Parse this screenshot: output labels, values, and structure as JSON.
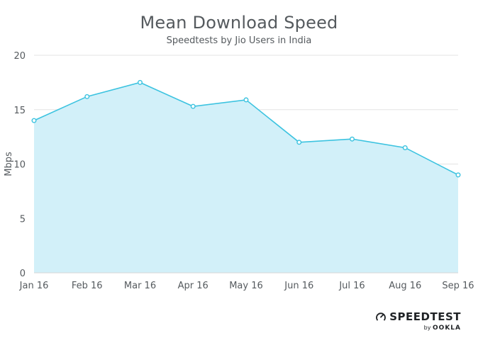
{
  "chart_data": {
    "type": "area",
    "title": "Mean Download Speed",
    "subtitle": "Speedtests by Jio Users in India",
    "xlabel": "",
    "ylabel": "Mbps",
    "categories": [
      "Jan 16",
      "Feb 16",
      "Mar 16",
      "Apr 16",
      "May 16",
      "Jun 16",
      "Jul 16",
      "Aug 16",
      "Sep 16"
    ],
    "series": [
      {
        "values": [
          14.0,
          16.2,
          17.5,
          15.3,
          15.9,
          12.0,
          12.3,
          11.5,
          9.0
        ]
      }
    ],
    "ylim": [
      0,
      20
    ],
    "yticks": [
      0,
      5,
      10,
      15,
      20
    ],
    "grid": true,
    "legend": "none",
    "colors": {
      "line": "#3cc3e0",
      "fill": "#d2f0f9",
      "grid": "#e3e3e3",
      "text": "#555a5e"
    }
  },
  "branding": {
    "logo_text": "SPEEDTEST",
    "by_label": "by",
    "company": "OOKLA",
    "logo_icon": "speedometer-icon"
  }
}
